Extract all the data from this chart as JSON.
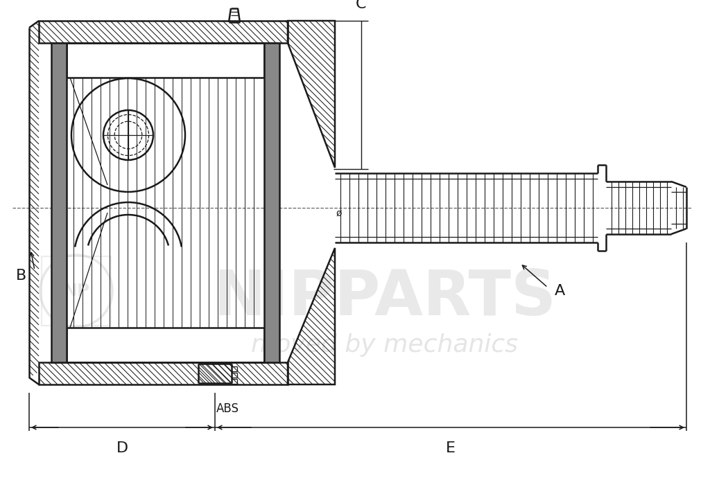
{
  "line_color": "#1a1a1a",
  "gray_fill": "#888888",
  "watermark_color": "#cccccc",
  "label_A": "A",
  "label_B": "B",
  "label_C": "C",
  "label_D": "D",
  "label_E": "E",
  "label_ABS": "ABS",
  "label_phi": "ø",
  "brand_text": "moved by mechanics",
  "brand_logo": "NIPPARTS",
  "font_size_labels": 16
}
